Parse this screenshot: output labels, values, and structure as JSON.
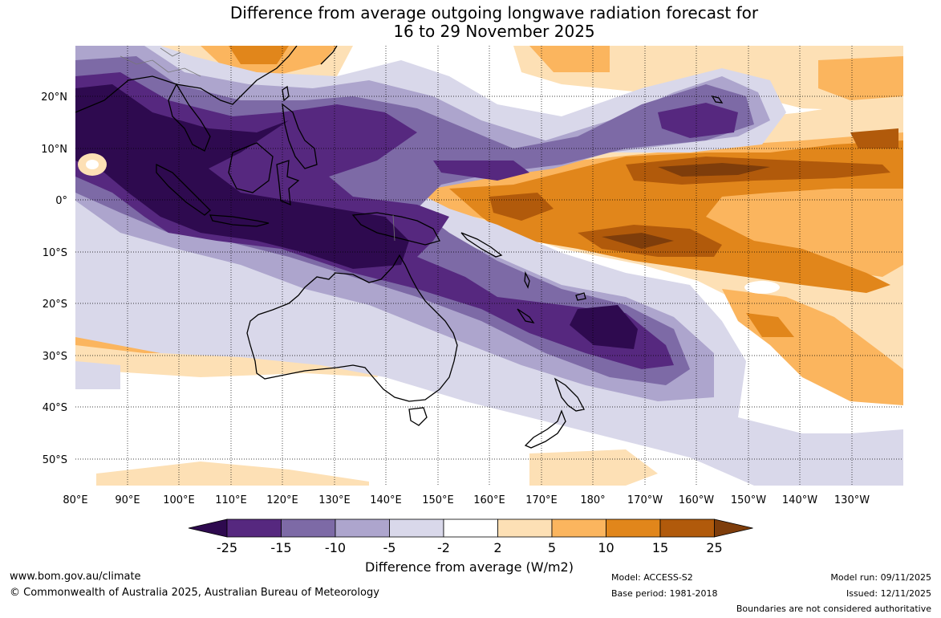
{
  "title": {
    "line1": "Difference from average outgoing longwave radiation forecast for",
    "line2": "16 to 29 November 2025"
  },
  "map": {
    "region": "Australia, Maritime Continent and South-West Pacific",
    "lon_labels": [
      "80°E",
      "90°E",
      "100°E",
      "110°E",
      "120°E",
      "130°E",
      "140°E",
      "150°E",
      "160°E",
      "170°E",
      "180°",
      "170°W",
      "160°W",
      "150°W",
      "140°W",
      "130°W"
    ],
    "lat_labels": [
      "20°N",
      "10°N",
      "0°",
      "10°S",
      "20°S",
      "30°S",
      "40°S",
      "50°S"
    ]
  },
  "legend": {
    "title": "Difference from average (W/m2)",
    "tick_labels": [
      "-25",
      "-15",
      "-10",
      "-5",
      "-2",
      "2",
      "5",
      "10",
      "15",
      "25"
    ],
    "colors": [
      "#2e0a4f",
      "#56287f",
      "#7d6aa6",
      "#ada5cd",
      "#d9d8ea",
      "#ffffff",
      "#fde0b5",
      "#fbb55e",
      "#e1861b",
      "#b15a0b",
      "#7e3d0b"
    ]
  },
  "footer": {
    "website": "www.bom.gov.au/climate",
    "copyright": "© Commonwealth of Australia 2025, Australian Bureau of Meteorology",
    "model": "Model: ACCESS-S2",
    "base_period": "Base period: 1981-2018",
    "model_run": "Model run: 09/11/2025",
    "issued": "Issued: 12/11/2025",
    "disclaimer": "Boundaries are not considered authoritative"
  }
}
